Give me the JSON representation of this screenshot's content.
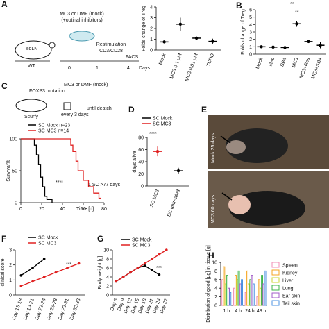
{
  "figure": {
    "panels": [
      "A",
      "B",
      "C",
      "D",
      "E",
      "F",
      "G",
      "H"
    ]
  },
  "schematic_a": {
    "mouse": "sdLN",
    "strain": "WT",
    "treatment": "MC3 or DMF (mock)",
    "inhibitors": "(+optinal inhibitors)",
    "restim": "Restimulation",
    "restim_detail": "CD3/CD28",
    "readout": "FACS",
    "timeline": [
      "0",
      "1",
      "4"
    ],
    "unit": "Days"
  },
  "schematic_c": {
    "mutation": "FOXP3 mutation",
    "treatment": "MC3 or DMF (mock)",
    "strain": "Scurfy",
    "schedule": "every 3 days",
    "until": "until deatch"
  },
  "photos": {
    "top": "Mock 25 days",
    "bottom": "MC3 60 days"
  },
  "chart_data": [
    {
      "type": "dot",
      "ylabel": "Folds change of Treg",
      "categories": [
        "Mock",
        "MC3 0.1 µM",
        "MC3 0.01 µM",
        "TCDD"
      ],
      "values": [
        0.75,
        2.4,
        1.1,
        0.8
      ],
      "errors": [
        0.1,
        0.6,
        0.15,
        0.25
      ],
      "color": "#000000",
      "ylim": [
        0,
        4
      ],
      "yticks": [
        0,
        1,
        2,
        3,
        4
      ]
    },
    {
      "type": "dot",
      "ylabel": "Folds change of Treg",
      "categories": [
        "Mock",
        "Res",
        "SB4",
        "MC3",
        "MC3+Res",
        "MC3+SB4"
      ],
      "values": [
        1,
        0.95,
        0.9,
        4.1,
        1.7,
        1.2
      ],
      "errors": [
        0.05,
        0.1,
        0.1,
        0.4,
        0.2,
        0.4
      ],
      "color": "#000000",
      "ylim": [
        0,
        6
      ],
      "yticks": [
        0,
        1,
        2,
        3,
        4,
        5,
        6
      ],
      "annotations": [
        "**",
        "**"
      ]
    },
    {
      "type": "step",
      "ylabel": "Survival%",
      "xlabel": "Time [d]",
      "xlim": [
        0,
        80
      ],
      "xticks": [
        0,
        20,
        40,
        60,
        80
      ],
      "ylim": [
        0,
        100
      ],
      "yticks": [
        0,
        50,
        100
      ],
      "series": [
        {
          "name": "SC Mock n=23",
          "color": "#000000",
          "x": [
            0,
            10,
            13,
            15,
            17,
            19,
            21,
            23,
            25,
            30
          ],
          "values": [
            100,
            100,
            90,
            75,
            60,
            40,
            25,
            10,
            5,
            0
          ]
        },
        {
          "name": "SC MC3 n=14",
          "color": "#e02020",
          "x": [
            0,
            45,
            48,
            50,
            53,
            55,
            60,
            65,
            70,
            75,
            77
          ],
          "values": [
            100,
            100,
            90,
            80,
            65,
            50,
            35,
            25,
            15,
            7,
            7
          ]
        }
      ],
      "annotations": [
        "****",
        "1 SC >77 days"
      ]
    },
    {
      "type": "dot",
      "ylabel": "days alive",
      "categories": [
        "SC MC3",
        "SC untreated"
      ],
      "values": [
        57,
        25
      ],
      "errors": [
        8,
        5
      ],
      "colors": [
        "#e02020",
        "#000000"
      ],
      "ylim": [
        0,
        80
      ],
      "yticks": [
        0,
        20,
        40,
        60,
        80
      ],
      "legend": [
        {
          "name": "SC Mock",
          "color": "#000000"
        },
        {
          "name": "SC MC3",
          "color": "#e02020"
        }
      ],
      "annotations": [
        "****"
      ]
    },
    {
      "type": "line",
      "ylabel": "clinical score",
      "categories": [
        "Day 15-18",
        "Day 19-21",
        "Day 22-24",
        "Day 25-28",
        "Day 29-31",
        "Day 32-33"
      ],
      "ylim": [
        0,
        3
      ],
      "yticks": [
        0,
        1,
        2,
        3
      ],
      "series": [
        {
          "name": "SC Mock",
          "color": "#000000",
          "values": [
            1.3,
            1.8,
            2.4,
            null,
            null,
            null
          ]
        },
        {
          "name": "SC MC3",
          "color": "#e02020",
          "values": [
            0.6,
            0.9,
            1.2,
            1.5,
            1.8,
            2.1
          ]
        }
      ],
      "annotations": [
        "***"
      ]
    },
    {
      "type": "line",
      "ylabel": "Body weight [g]",
      "categories": [
        "Day 6",
        "Day 9",
        "Day 12",
        "Day 15",
        "Day 18",
        "Day 21",
        "Day 24",
        "Day 27"
      ],
      "ylim": [
        0,
        10
      ],
      "yticks": [
        0,
        2,
        4,
        6,
        8,
        10
      ],
      "series": [
        {
          "name": "SC Mock",
          "color": "#000000",
          "values": [
            3,
            4,
            5,
            6,
            6.5,
            5.5,
            4.5,
            null
          ]
        },
        {
          "name": "SC MC3",
          "color": "#e02020",
          "values": [
            3,
            4,
            5,
            6,
            7,
            8,
            9,
            10
          ]
        }
      ],
      "annotations": [
        "***"
      ]
    },
    {
      "type": "bar",
      "ylabel": "Distribution of good [µg] in tissue [g]",
      "categories": [
        "1 h",
        "4 h",
        "24 h",
        "48 h"
      ],
      "ylim": [
        0,
        10
      ],
      "yticks": [
        0,
        2,
        4,
        6,
        8,
        10
      ],
      "series": [
        {
          "name": "Spleen",
          "color": "#f08cb4",
          "values": [
            6,
            4,
            3,
            2
          ]
        },
        {
          "name": "Kidney",
          "color": "#f5a623",
          "values": [
            9,
            7,
            8,
            6
          ]
        },
        {
          "name": "Liver",
          "color": "#c8d630",
          "values": [
            5,
            6,
            5,
            4
          ]
        },
        {
          "name": "Lung",
          "color": "#3cb44b",
          "values": [
            7,
            8,
            6,
            7
          ]
        },
        {
          "name": "Ear skin",
          "color": "#a05cc8",
          "values": [
            4,
            5,
            7,
            5
          ]
        },
        {
          "name": "Tail skin",
          "color": "#4a90e2",
          "values": [
            3,
            6,
            5,
            8
          ]
        }
      ]
    }
  ]
}
